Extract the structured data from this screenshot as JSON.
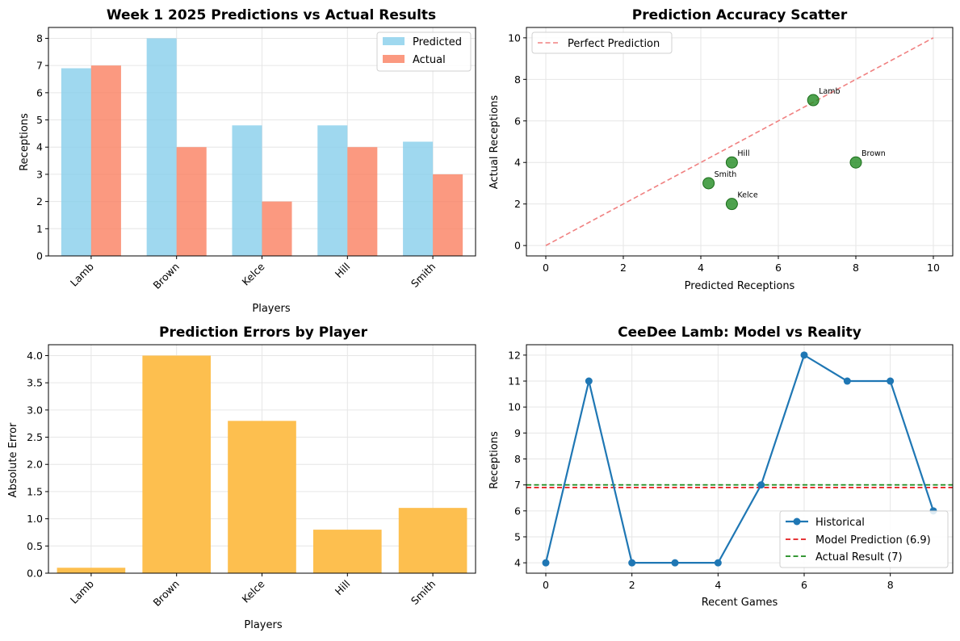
{
  "chart_data": [
    {
      "type": "bar",
      "title": "Week 1 2025 Predictions vs Actual Results",
      "xlabel": "Players",
      "ylabel": "Receptions",
      "categories": [
        "Lamb",
        "Brown",
        "Kelce",
        "Hill",
        "Smith"
      ],
      "series": [
        {
          "name": "Predicted",
          "values": [
            6.9,
            8.0,
            4.8,
            4.8,
            4.2
          ],
          "color": "#87ceeb"
        },
        {
          "name": "Actual",
          "values": [
            7,
            4,
            2,
            4,
            3
          ],
          "color": "#fa8060"
        }
      ],
      "ylim": [
        0,
        8.4
      ],
      "yticks": [
        "0",
        "1",
        "2",
        "3",
        "4",
        "5",
        "6",
        "7",
        "8"
      ],
      "legend": "top-right",
      "grid": true
    },
    {
      "type": "scatter",
      "title": "Prediction Accuracy Scatter",
      "xlabel": "Predicted Receptions",
      "ylabel": "Actual Receptions",
      "points": [
        {
          "label": "Lamb",
          "x": 6.9,
          "y": 7
        },
        {
          "label": "Brown",
          "x": 8.0,
          "y": 4
        },
        {
          "label": "Kelce",
          "x": 4.8,
          "y": 2
        },
        {
          "label": "Hill",
          "x": 4.8,
          "y": 4
        },
        {
          "label": "Smith",
          "x": 4.2,
          "y": 3
        }
      ],
      "point_color": "#228b22",
      "reference_line": {
        "name": "Perfect Prediction",
        "from": [
          0,
          0
        ],
        "to": [
          10,
          10
        ],
        "color": "#f08080"
      },
      "xlim": [
        -0.5,
        10.5
      ],
      "ylim": [
        -0.5,
        10.5
      ],
      "xticks": [
        "0",
        "2",
        "4",
        "6",
        "8",
        "10"
      ],
      "yticks": [
        "0",
        "2",
        "4",
        "6",
        "8",
        "10"
      ],
      "legend": "top-left",
      "grid": true
    },
    {
      "type": "bar",
      "title": "Prediction Errors by Player",
      "xlabel": "Players",
      "ylabel": "Absolute Error",
      "categories": [
        "Lamb",
        "Brown",
        "Kelce",
        "Hill",
        "Smith"
      ],
      "values": [
        0.1,
        4.0,
        2.8,
        0.8,
        1.2
      ],
      "color": "#fdbf4f",
      "ylim": [
        0,
        4.2
      ],
      "yticks": [
        "0.0",
        "0.5",
        "1.0",
        "1.5",
        "2.0",
        "2.5",
        "3.0",
        "3.5",
        "4.0"
      ],
      "grid": true
    },
    {
      "type": "line",
      "title": "CeeDee Lamb: Model vs Reality",
      "xlabel": "Recent Games",
      "ylabel": "Receptions",
      "x": [
        0,
        1,
        2,
        3,
        4,
        5,
        6,
        7,
        8,
        9
      ],
      "series": [
        {
          "name": "Historical",
          "values": [
            4,
            11,
            4,
            4,
            4,
            7,
            12,
            11,
            11,
            6
          ],
          "color": "#1f77b4"
        }
      ],
      "hlines": [
        {
          "name": "Model Prediction (6.9)",
          "y": 6.9,
          "color": "#e31a1c"
        },
        {
          "name": "Actual Result (7)",
          "y": 7,
          "color": "#1a8a1a"
        }
      ],
      "xlim": [
        -0.45,
        9.45
      ],
      "ylim": [
        3.6,
        12.4
      ],
      "xticks": [
        "0",
        "2",
        "4",
        "6",
        "8"
      ],
      "yticks": [
        "4",
        "5",
        "6",
        "7",
        "8",
        "9",
        "10",
        "11",
        "12"
      ],
      "legend": "bottom-right",
      "grid": true
    }
  ]
}
